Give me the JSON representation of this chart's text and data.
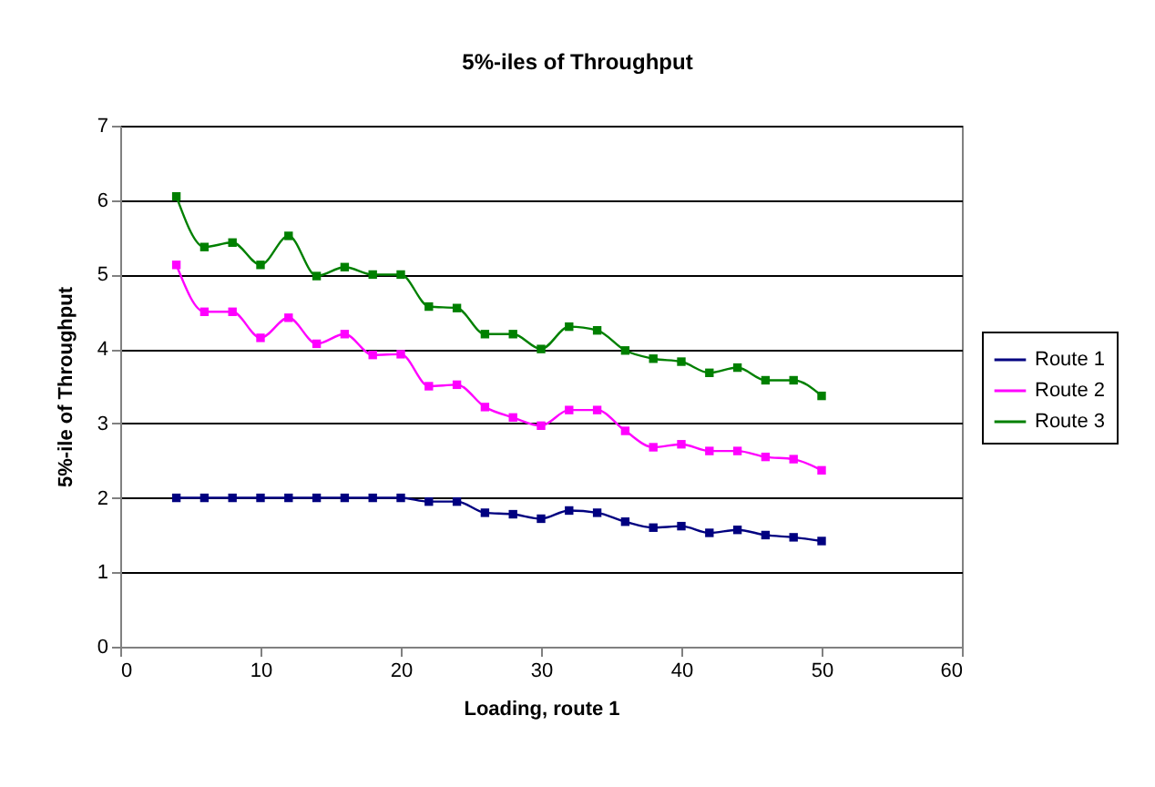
{
  "chart_data": {
    "type": "line",
    "title": "5%-iles of Throughput",
    "xlabel": "Loading, route 1",
    "ylabel": "5%-ile of Throughput",
    "x": [
      4,
      6,
      8,
      10,
      12,
      14,
      16,
      18,
      20,
      22,
      24,
      26,
      28,
      30,
      32,
      34,
      36,
      38,
      40,
      42,
      44,
      46,
      48,
      50
    ],
    "series": [
      {
        "name": "Route 1",
        "color": "#000080",
        "values": [
          2,
          2,
          2,
          2,
          2,
          2,
          2,
          2,
          2,
          1.95,
          1.95,
          1.8,
          1.78,
          1.72,
          1.83,
          1.8,
          1.68,
          1.6,
          1.62,
          1.53,
          1.57,
          1.5,
          1.47,
          1.42
        ]
      },
      {
        "name": "Route 2",
        "color": "#ff00ff",
        "values": [
          5.13,
          4.5,
          4.5,
          4.15,
          4.42,
          4.07,
          4.2,
          3.92,
          3.93,
          3.5,
          3.52,
          3.22,
          3.08,
          2.97,
          3.18,
          3.18,
          2.9,
          2.68,
          2.72,
          2.63,
          2.63,
          2.55,
          2.52,
          2.37
        ]
      },
      {
        "name": "Route 3",
        "color": "#008000",
        "values": [
          6.05,
          5.37,
          5.43,
          5.13,
          5.52,
          4.98,
          5.1,
          5.0,
          5.0,
          4.57,
          4.55,
          4.2,
          4.2,
          4.0,
          4.3,
          4.25,
          3.98,
          3.87,
          3.83,
          3.68,
          3.75,
          3.58,
          3.58,
          3.37
        ]
      }
    ],
    "xlim": [
      0,
      60
    ],
    "ylim": [
      0,
      7
    ],
    "xticks": [
      0,
      10,
      20,
      30,
      40,
      50,
      60
    ],
    "yticks": [
      0,
      1,
      2,
      3,
      4,
      5,
      6,
      7
    ],
    "grid": "y",
    "legend": "right",
    "marker": "square",
    "line_style": "solid"
  }
}
